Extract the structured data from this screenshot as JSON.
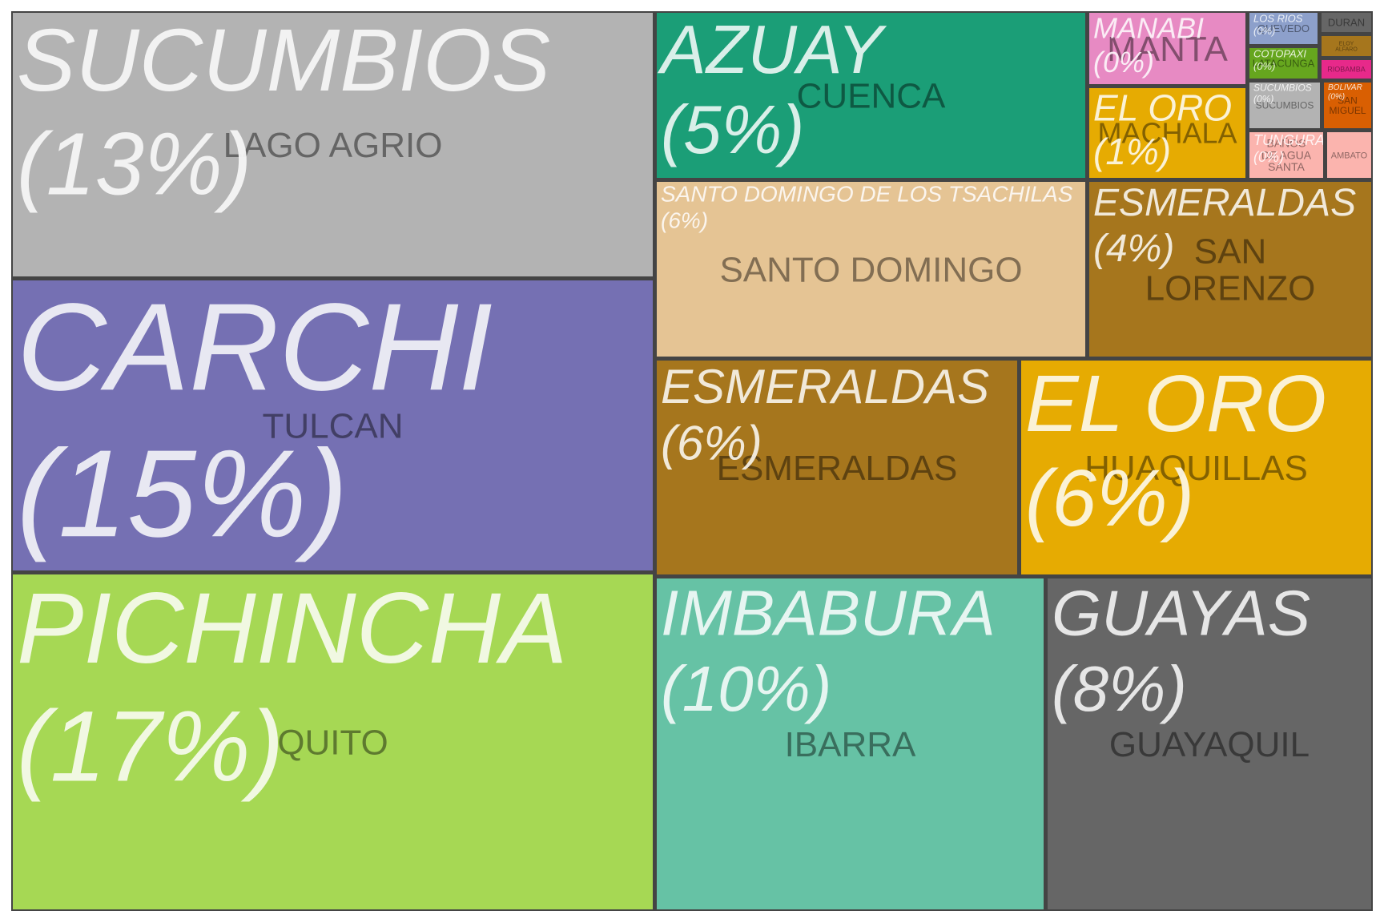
{
  "chart_data": {
    "type": "treemap",
    "cells": [
      {
        "province": "SUCUMBIOS",
        "percent": "(13%)",
        "city": "LAGO AGRIO",
        "color": "#b3b3b3"
      },
      {
        "province": "CARCHI",
        "percent": "(15%)",
        "city": "TULCAN",
        "color": "#7570b3"
      },
      {
        "province": "PICHINCHA",
        "percent": "(17%)",
        "city": "QUITO",
        "color": "#a6d854"
      },
      {
        "province": "AZUAY",
        "percent": "(5%)",
        "city": "CUENCA",
        "color": "#1b9e77"
      },
      {
        "province": "SANTO DOMINGO DE LOS TSACHILAS",
        "percent": "(6%)",
        "city": "SANTO DOMINGO",
        "color": "#e5c494"
      },
      {
        "province": "ESMERALDAS",
        "percent": "(4%)",
        "city": "SAN LORENZO",
        "color": "#a6761d"
      },
      {
        "province": "ESMERALDAS",
        "percent": "(6%)",
        "city": "ESMERALDAS",
        "color": "#a6761d"
      },
      {
        "province": "EL ORO",
        "percent": "(6%)",
        "city": "HUAQUILLAS",
        "color": "#e6ab02"
      },
      {
        "province": "IMBABURA",
        "percent": "(10%)",
        "city": "IBARRA",
        "color": "#66c2a5"
      },
      {
        "province": "GUAYAS",
        "percent": "(8%)",
        "city": "GUAYAQUIL",
        "color": "#666666"
      },
      {
        "province": "MANABI",
        "percent": "(0%)",
        "city": "MANTA",
        "color": "#e78ac3"
      },
      {
        "province": "EL ORO",
        "percent": "(1%)",
        "city": "MACHALA",
        "color": "#e6ab02"
      },
      {
        "province": "LOS RIOS",
        "percent": "(0%)",
        "city": "QUEVEDO",
        "color": "#8da0cb"
      },
      {
        "province": "",
        "percent": "",
        "city": "DURAN",
        "color": "#666666"
      },
      {
        "province": "",
        "percent": "",
        "city": "ELOY ALFARO",
        "color": "#a6761d"
      },
      {
        "province": "COTOPAXI",
        "percent": "(0%)",
        "city": "LATACUNGA",
        "color": "#66a61e"
      },
      {
        "province": "",
        "percent": "",
        "city": "RIOBAMBA",
        "color": "#e7298a"
      },
      {
        "province": "SUCUMBIOS",
        "percent": "(0%)",
        "city": "SUCUMBIOS",
        "color": "#b3b3b3"
      },
      {
        "province": "BOLIVAR",
        "percent": "(0%)",
        "city": "SAN MIGUEL",
        "color": "#d95f02"
      },
      {
        "province": "TUNGURAHUA",
        "percent": "(0%)",
        "city": "BAÑOS DE AGUA SANTA",
        "color": "#fbb4ae"
      },
      {
        "province": "",
        "percent": "",
        "city": "AMBATO",
        "color": "#fbb4ae"
      }
    ]
  }
}
